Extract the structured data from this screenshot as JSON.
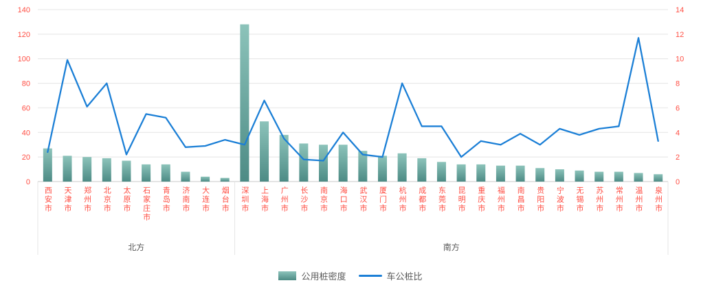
{
  "chart_data": {
    "type": "bar+line combo",
    "title": "",
    "categories": [
      "西安市",
      "天津市",
      "郑州市",
      "北京市",
      "太原市",
      "石家庄市",
      "青岛市",
      "济南市",
      "大连市",
      "烟台市",
      "深圳市",
      "上海市",
      "广州市",
      "长沙市",
      "南京市",
      "海口市",
      "武汉市",
      "厦门市",
      "杭州市",
      "成都市",
      "东莞市",
      "昆明市",
      "重庆市",
      "福州市",
      "南昌市",
      "贵阳市",
      "宁波市",
      "无锡市",
      "苏州市",
      "常州市",
      "温州市",
      "泉州市"
    ],
    "groups": [
      {
        "label": "北方",
        "count": 10
      },
      {
        "label": "南方",
        "count": 22
      }
    ],
    "series": [
      {
        "name": "公用桩密度",
        "type": "bar",
        "axis": "left",
        "values": [
          27,
          21,
          20,
          19,
          17,
          14,
          14,
          8,
          4,
          3,
          128,
          49,
          38,
          31,
          30,
          30,
          25,
          21,
          23,
          19,
          16,
          14,
          14,
          13,
          13,
          11,
          10,
          9,
          8,
          8,
          7,
          6
        ]
      },
      {
        "name": "车公桩比",
        "type": "line",
        "axis": "right",
        "values": [
          2.4,
          9.9,
          6.1,
          8.0,
          2.2,
          5.5,
          5.2,
          2.8,
          2.9,
          3.4,
          3.0,
          6.6,
          3.5,
          1.8,
          1.7,
          4.0,
          2.2,
          2.0,
          8.0,
          4.5,
          4.5,
          2.0,
          3.3,
          3.0,
          3.9,
          3.0,
          4.3,
          3.8,
          4.3,
          4.5,
          11.7,
          3.3
        ]
      }
    ],
    "left_axis": {
      "min": 0,
      "max": 140,
      "step": 20
    },
    "right_axis": {
      "min": 0,
      "max": 14,
      "step": 2
    },
    "legend_position": "bottom",
    "grid": "horizontal",
    "colors": {
      "bar_top": "#8cc3ba",
      "bar_bottom": "#4d8b85",
      "line": "#1b7fd6",
      "axis_label": "#ff4d42",
      "grid": "#e4e4e4",
      "axis_line": "#c9c9c9",
      "group_label": "#595959"
    }
  },
  "legend": {
    "bar_label": "公用桩密度",
    "line_label": "车公桩比"
  }
}
